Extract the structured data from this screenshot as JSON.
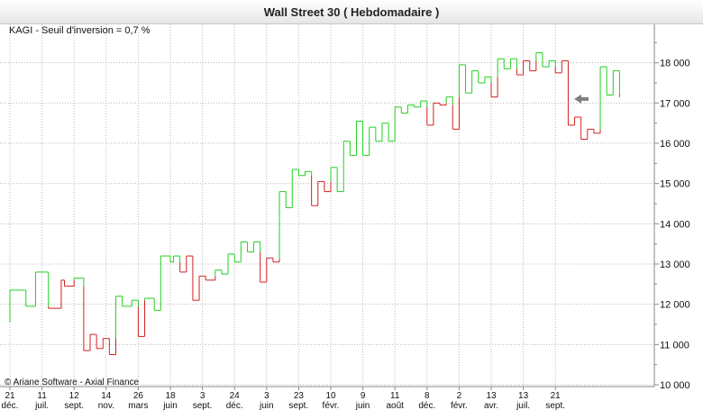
{
  "chart_data": {
    "type": "line",
    "title": "Wall Street 30  ( Hebdomadaire )",
    "subtitle": "KAGI - Seuil d'inversion = 0,7 %",
    "credit": "© Ariane Software - Axial Finance",
    "ylim": [
      10000,
      19000
    ],
    "y_ticks": [
      {
        "value": 10000,
        "label": "10 000"
      },
      {
        "value": 11000,
        "label": "11 000"
      },
      {
        "value": 12000,
        "label": "12 000"
      },
      {
        "value": 13000,
        "label": "13 000"
      },
      {
        "value": 14000,
        "label": "14 000"
      },
      {
        "value": 15000,
        "label": "15 000"
      },
      {
        "value": 16000,
        "label": "16 000"
      },
      {
        "value": 17000,
        "label": "17 000"
      },
      {
        "value": 18000,
        "label": "18 000"
      }
    ],
    "x_ticks": [
      {
        "day": "21",
        "month": "déc."
      },
      {
        "day": "11",
        "month": "juil."
      },
      {
        "day": "12",
        "month": "sept."
      },
      {
        "day": "14",
        "month": "nov."
      },
      {
        "day": "26",
        "month": "mars"
      },
      {
        "day": "18",
        "month": "juin"
      },
      {
        "day": "3",
        "month": "sept."
      },
      {
        "day": "24",
        "month": "déc."
      },
      {
        "day": "3",
        "month": "juin"
      },
      {
        "day": "23",
        "month": "sept."
      },
      {
        "day": "10",
        "month": "févr."
      },
      {
        "day": "9",
        "month": "juin"
      },
      {
        "day": "11",
        "month": "août"
      },
      {
        "day": "8",
        "month": "déc."
      },
      {
        "day": "2",
        "month": "févr."
      },
      {
        "day": "13",
        "month": "avr."
      },
      {
        "day": "13",
        "month": "juil."
      },
      {
        "day": "21",
        "month": "sept."
      }
    ],
    "kagi_lines": [
      {
        "tick": 0.0,
        "value": 11550
      },
      {
        "tick": 0.0,
        "value": 12350
      },
      {
        "tick": 0.5,
        "value": 12350
      },
      {
        "tick": 0.5,
        "value": 11950
      },
      {
        "tick": 0.8,
        "value": 11950
      },
      {
        "tick": 0.8,
        "value": 12800
      },
      {
        "tick": 1.2,
        "value": 12800
      },
      {
        "tick": 1.2,
        "value": 11900
      },
      {
        "tick": 1.6,
        "value": 11900
      },
      {
        "tick": 1.6,
        "value": 12600
      },
      {
        "tick": 1.7,
        "value": 12600
      },
      {
        "tick": 1.7,
        "value": 12450
      },
      {
        "tick": 2.0,
        "value": 12450
      },
      {
        "tick": 2.0,
        "value": 12650
      },
      {
        "tick": 2.3,
        "value": 12650
      },
      {
        "tick": 2.3,
        "value": 10850
      },
      {
        "tick": 2.5,
        "value": 10850
      },
      {
        "tick": 2.5,
        "value": 11250
      },
      {
        "tick": 2.7,
        "value": 11250
      },
      {
        "tick": 2.7,
        "value": 10900
      },
      {
        "tick": 2.9,
        "value": 10900
      },
      {
        "tick": 2.9,
        "value": 11150
      },
      {
        "tick": 3.1,
        "value": 11150
      },
      {
        "tick": 3.1,
        "value": 10750
      },
      {
        "tick": 3.3,
        "value": 10750
      },
      {
        "tick": 3.3,
        "value": 12200
      },
      {
        "tick": 3.5,
        "value": 12200
      },
      {
        "tick": 3.5,
        "value": 11950
      },
      {
        "tick": 3.8,
        "value": 11950
      },
      {
        "tick": 3.8,
        "value": 12100
      },
      {
        "tick": 4.0,
        "value": 12100
      },
      {
        "tick": 4.0,
        "value": 11200
      },
      {
        "tick": 4.2,
        "value": 11200
      },
      {
        "tick": 4.2,
        "value": 12150
      },
      {
        "tick": 4.5,
        "value": 12150
      },
      {
        "tick": 4.5,
        "value": 11850
      },
      {
        "tick": 4.7,
        "value": 11850
      },
      {
        "tick": 4.7,
        "value": 13200
      },
      {
        "tick": 5.0,
        "value": 13200
      },
      {
        "tick": 5.0,
        "value": 13050
      },
      {
        "tick": 5.1,
        "value": 13050
      },
      {
        "tick": 5.1,
        "value": 13200
      },
      {
        "tick": 5.3,
        "value": 13200
      },
      {
        "tick": 5.3,
        "value": 12800
      },
      {
        "tick": 5.5,
        "value": 12800
      },
      {
        "tick": 5.5,
        "value": 13200
      },
      {
        "tick": 5.7,
        "value": 13200
      },
      {
        "tick": 5.7,
        "value": 12100
      },
      {
        "tick": 5.9,
        "value": 12100
      },
      {
        "tick": 5.9,
        "value": 12700
      },
      {
        "tick": 6.1,
        "value": 12700
      },
      {
        "tick": 6.1,
        "value": 12600
      },
      {
        "tick": 6.4,
        "value": 12600
      },
      {
        "tick": 6.4,
        "value": 12850
      },
      {
        "tick": 6.6,
        "value": 12850
      },
      {
        "tick": 6.6,
        "value": 12750
      },
      {
        "tick": 6.8,
        "value": 12750
      },
      {
        "tick": 6.8,
        "value": 13250
      },
      {
        "tick": 7.0,
        "value": 13250
      },
      {
        "tick": 7.0,
        "value": 13050
      },
      {
        "tick": 7.2,
        "value": 13050
      },
      {
        "tick": 7.2,
        "value": 13550
      },
      {
        "tick": 7.4,
        "value": 13550
      },
      {
        "tick": 7.4,
        "value": 13300
      },
      {
        "tick": 7.6,
        "value": 13300
      },
      {
        "tick": 7.6,
        "value": 13550
      },
      {
        "tick": 7.8,
        "value": 13550
      },
      {
        "tick": 7.8,
        "value": 12550
      },
      {
        "tick": 8.0,
        "value": 12550
      },
      {
        "tick": 8.0,
        "value": 13150
      },
      {
        "tick": 8.2,
        "value": 13150
      },
      {
        "tick": 8.2,
        "value": 13050
      },
      {
        "tick": 8.4,
        "value": 13050
      },
      {
        "tick": 8.4,
        "value": 14800
      },
      {
        "tick": 8.6,
        "value": 14800
      },
      {
        "tick": 8.6,
        "value": 14400
      },
      {
        "tick": 8.8,
        "value": 14400
      },
      {
        "tick": 8.8,
        "value": 15350
      },
      {
        "tick": 9.0,
        "value": 15350
      },
      {
        "tick": 9.0,
        "value": 15200
      },
      {
        "tick": 9.2,
        "value": 15200
      },
      {
        "tick": 9.2,
        "value": 15300
      },
      {
        "tick": 9.4,
        "value": 15300
      },
      {
        "tick": 9.4,
        "value": 14450
      },
      {
        "tick": 9.6,
        "value": 14450
      },
      {
        "tick": 9.6,
        "value": 15050
      },
      {
        "tick": 9.8,
        "value": 15050
      },
      {
        "tick": 9.8,
        "value": 14800
      },
      {
        "tick": 10.0,
        "value": 14800
      },
      {
        "tick": 10.0,
        "value": 15400
      },
      {
        "tick": 10.2,
        "value": 15400
      },
      {
        "tick": 10.2,
        "value": 14800
      },
      {
        "tick": 10.4,
        "value": 14800
      },
      {
        "tick": 10.4,
        "value": 16050
      },
      {
        "tick": 10.6,
        "value": 16050
      },
      {
        "tick": 10.6,
        "value": 15700
      },
      {
        "tick": 10.8,
        "value": 15700
      },
      {
        "tick": 10.8,
        "value": 16550
      },
      {
        "tick": 11.0,
        "value": 16550
      },
      {
        "tick": 11.0,
        "value": 15700
      },
      {
        "tick": 11.2,
        "value": 15700
      },
      {
        "tick": 11.2,
        "value": 16400
      },
      {
        "tick": 11.4,
        "value": 16400
      },
      {
        "tick": 11.4,
        "value": 16050
      },
      {
        "tick": 11.6,
        "value": 16050
      },
      {
        "tick": 11.6,
        "value": 16500
      },
      {
        "tick": 11.8,
        "value": 16500
      },
      {
        "tick": 11.8,
        "value": 16050
      },
      {
        "tick": 12.0,
        "value": 16050
      },
      {
        "tick": 12.0,
        "value": 16900
      },
      {
        "tick": 12.2,
        "value": 16900
      },
      {
        "tick": 12.2,
        "value": 16750
      },
      {
        "tick": 12.4,
        "value": 16750
      },
      {
        "tick": 12.4,
        "value": 16950
      },
      {
        "tick": 12.6,
        "value": 16950
      },
      {
        "tick": 12.6,
        "value": 16900
      },
      {
        "tick": 12.8,
        "value": 16900
      },
      {
        "tick": 12.8,
        "value": 17050
      },
      {
        "tick": 13.0,
        "value": 17050
      },
      {
        "tick": 13.0,
        "value": 16450
      },
      {
        "tick": 13.2,
        "value": 16450
      },
      {
        "tick": 13.2,
        "value": 17000
      },
      {
        "tick": 13.4,
        "value": 17000
      },
      {
        "tick": 13.4,
        "value": 16950
      },
      {
        "tick": 13.6,
        "value": 16950
      },
      {
        "tick": 13.6,
        "value": 17150
      },
      {
        "tick": 13.8,
        "value": 17150
      },
      {
        "tick": 13.8,
        "value": 16350
      },
      {
        "tick": 14.0,
        "value": 16350
      },
      {
        "tick": 14.0,
        "value": 17950
      },
      {
        "tick": 14.2,
        "value": 17950
      },
      {
        "tick": 14.2,
        "value": 17250
      },
      {
        "tick": 14.4,
        "value": 17250
      },
      {
        "tick": 14.4,
        "value": 17800
      },
      {
        "tick": 14.6,
        "value": 17800
      },
      {
        "tick": 14.6,
        "value": 17500
      },
      {
        "tick": 14.8,
        "value": 17500
      },
      {
        "tick": 14.8,
        "value": 17650
      },
      {
        "tick": 15.0,
        "value": 17650
      },
      {
        "tick": 15.0,
        "value": 17150
      },
      {
        "tick": 15.2,
        "value": 17150
      },
      {
        "tick": 15.2,
        "value": 18100
      },
      {
        "tick": 15.4,
        "value": 18100
      },
      {
        "tick": 15.4,
        "value": 17850
      },
      {
        "tick": 15.6,
        "value": 17850
      },
      {
        "tick": 15.6,
        "value": 18100
      },
      {
        "tick": 15.8,
        "value": 18100
      },
      {
        "tick": 15.8,
        "value": 17700
      },
      {
        "tick": 16.0,
        "value": 17700
      },
      {
        "tick": 16.0,
        "value": 18050
      },
      {
        "tick": 16.2,
        "value": 18050
      },
      {
        "tick": 16.2,
        "value": 17800
      },
      {
        "tick": 16.4,
        "value": 17800
      },
      {
        "tick": 16.4,
        "value": 18250
      },
      {
        "tick": 16.6,
        "value": 18250
      },
      {
        "tick": 16.6,
        "value": 17900
      },
      {
        "tick": 16.8,
        "value": 17900
      },
      {
        "tick": 16.8,
        "value": 18050
      },
      {
        "tick": 17.0,
        "value": 18050
      },
      {
        "tick": 17.0,
        "value": 17750
      },
      {
        "tick": 17.2,
        "value": 17750
      },
      {
        "tick": 17.2,
        "value": 18050
      },
      {
        "tick": 17.4,
        "value": 18050
      },
      {
        "tick": 17.4,
        "value": 16450
      },
      {
        "tick": 17.6,
        "value": 16450
      },
      {
        "tick": 17.6,
        "value": 16650
      },
      {
        "tick": 17.8,
        "value": 16650
      },
      {
        "tick": 17.8,
        "value": 16100
      },
      {
        "tick": 18.0,
        "value": 16100
      },
      {
        "tick": 18.0,
        "value": 16350
      },
      {
        "tick": 18.2,
        "value": 16350
      },
      {
        "tick": 18.2,
        "value": 16250
      },
      {
        "tick": 18.4,
        "value": 16250
      },
      {
        "tick": 18.4,
        "value": 17900
      },
      {
        "tick": 18.6,
        "value": 17900
      },
      {
        "tick": 18.6,
        "value": 17200
      },
      {
        "tick": 18.8,
        "value": 17200
      },
      {
        "tick": 18.8,
        "value": 17800
      },
      {
        "tick": 19.0,
        "value": 17800
      },
      {
        "tick": 19.0,
        "value": 17150
      }
    ],
    "last_value_marker": {
      "value": 17100
    },
    "colors": {
      "up": "#22d022",
      "down": "#d42020",
      "marker": "#808080",
      "grid": "#b8b8b8"
    },
    "grid": true
  }
}
